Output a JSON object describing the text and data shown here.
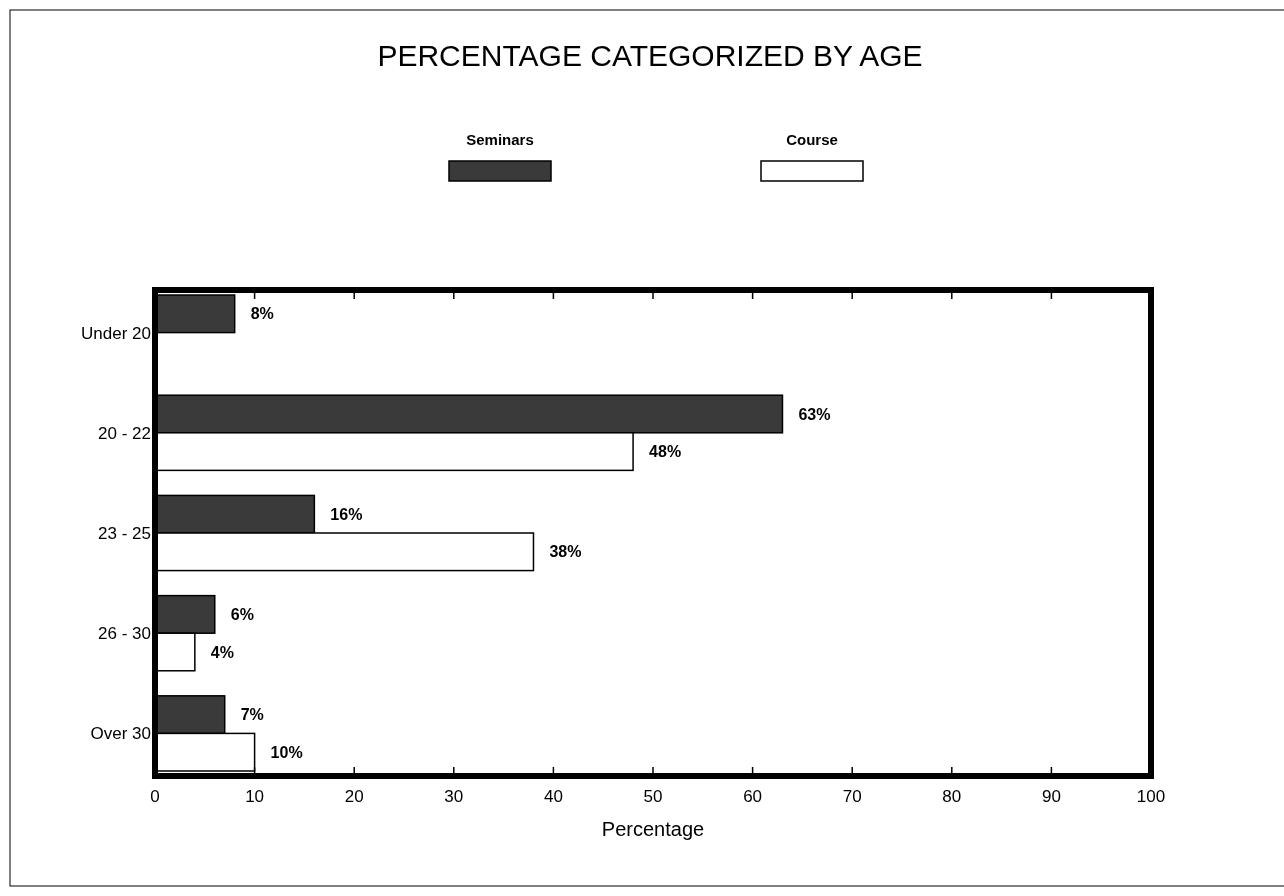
{
  "chart_data": {
    "type": "bar",
    "orientation": "horizontal",
    "title": "PERCENTAGE CATEGORIZED BY AGE",
    "xlabel": "Percentage",
    "categories": [
      "Under 20",
      "20 - 22",
      "23 - 25",
      "26 - 30",
      "Over 30"
    ],
    "series": [
      {
        "name": "Seminars",
        "color": "#3a3a3a",
        "values": [
          8,
          63,
          16,
          6,
          7
        ],
        "value_labels": [
          "8%",
          "63%",
          "16%",
          "6%",
          "7%"
        ]
      },
      {
        "name": "Course",
        "color": "#ffffff",
        "values": [
          null,
          48,
          38,
          4,
          10
        ],
        "value_labels": [
          null,
          "48%",
          "38%",
          "4%",
          "10%"
        ]
      }
    ],
    "xlim": [
      0,
      100
    ],
    "xticks": [
      0,
      10,
      20,
      30,
      40,
      50,
      60,
      70,
      80,
      90,
      100
    ],
    "legend": "top",
    "grid": false
  }
}
